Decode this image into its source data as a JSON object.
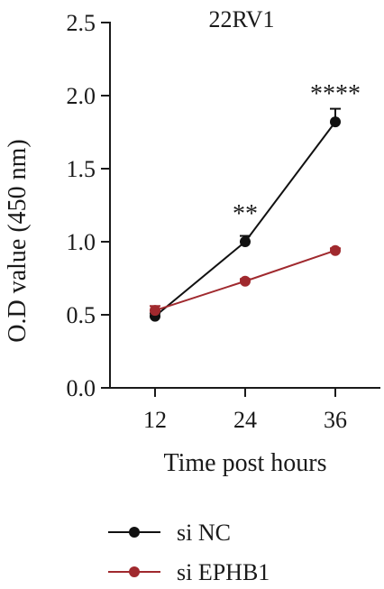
{
  "chart_data": {
    "type": "line",
    "title": "22RV1",
    "xlabel": "Time post hours",
    "ylabel": "O.D value (450 nm)",
    "x": [
      12,
      24,
      36
    ],
    "x_tick_labels": [
      "12",
      "24",
      "36"
    ],
    "xlim": [
      6,
      42
    ],
    "ylim": [
      0,
      2.5
    ],
    "y_ticks": [
      0.0,
      0.5,
      1.0,
      1.5,
      2.0,
      2.5
    ],
    "y_tick_labels": [
      "0.0",
      "0.5",
      "1.0",
      "1.5",
      "2.0",
      "2.5"
    ],
    "grid": false,
    "legend_position": "bottom",
    "series": [
      {
        "name": "si NC",
        "color": "#111111",
        "values": [
          0.49,
          1.0,
          1.82
        ],
        "errors": [
          0.02,
          0.04,
          0.09
        ]
      },
      {
        "name": "si EPHB1",
        "color": "#a0292e",
        "values": [
          0.53,
          0.73,
          0.94
        ],
        "errors": [
          0.03,
          0.015,
          0.015
        ]
      }
    ],
    "annotations": [
      {
        "x": 24,
        "y": 1.0,
        "text": "**"
      },
      {
        "x": 36,
        "y": 1.82,
        "text": "****"
      }
    ]
  }
}
